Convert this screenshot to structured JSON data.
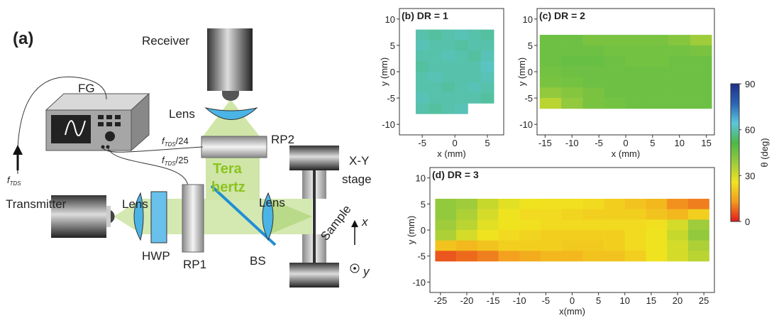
{
  "diagram": {
    "panel": "(a)",
    "receiver": "Receiver",
    "lens_top": "Lens",
    "fg": "FG",
    "rp2": "RP2",
    "stage": [
      "X-Y",
      "stage"
    ],
    "f24": {
      "f": "f",
      "sub": "TDS",
      "rest": "/24"
    },
    "f25": {
      "f": "f",
      "sub": "TDS",
      "rest": "/25"
    },
    "fin": {
      "f": "f",
      "sub": "TDS"
    },
    "terahertz": [
      "Tera",
      "hertz"
    ],
    "transmitter": "Transmitter",
    "lens_left": "Lens",
    "lens_right": "Lens",
    "sample": "Sample",
    "axis_x": "x",
    "axis_y": "y",
    "hwp": "HWP",
    "rp1": "RP1",
    "bs": "BS"
  },
  "chart_data": [
    {
      "type": "heatmap",
      "title": "(b) DR = 1",
      "xlabel": "x (mm)",
      "ylabel": "y (mm)",
      "xlim": [
        -8.5,
        7.5
      ],
      "ylim": [
        -12,
        12
      ],
      "xticks": [
        -5,
        0,
        5
      ],
      "yticks": [
        -10,
        -5,
        0,
        5,
        10
      ],
      "x": [
        -5,
        -3,
        -1,
        1,
        3,
        5
      ],
      "y": [
        7,
        5,
        3,
        1,
        -1,
        -3,
        -5,
        -7
      ],
      "z": [
        [
          60,
          59,
          60,
          61,
          60,
          59
        ],
        [
          61,
          60,
          60,
          59,
          60,
          60
        ],
        [
          60,
          60,
          61,
          60,
          59,
          61
        ],
        [
          59,
          60,
          60,
          60,
          60,
          62
        ],
        [
          60,
          61,
          60,
          60,
          60,
          61
        ],
        [
          60,
          60,
          59,
          60,
          61,
          60
        ],
        [
          61,
          60,
          60,
          60,
          60,
          59
        ],
        [
          60,
          59,
          60,
          61,
          null,
          null
        ]
      ]
    },
    {
      "type": "heatmap",
      "title": "(c) DR = 2",
      "xlabel": "x (mm)",
      "ylabel": "y (mm)",
      "xlim": [
        -16.5,
        16.5
      ],
      "ylim": [
        -12,
        12
      ],
      "xticks": [
        -15,
        -10,
        -5,
        0,
        5,
        10,
        15
      ],
      "yticks": [
        -10,
        -5,
        0,
        5,
        10
      ],
      "x": [
        -14,
        -10,
        -6,
        -2,
        2,
        6,
        10,
        14
      ],
      "y": [
        6,
        4,
        2,
        0,
        -2,
        -4,
        -6
      ],
      "z": [
        [
          46,
          46,
          44,
          44,
          44,
          44,
          42,
          38
        ],
        [
          46,
          46,
          46,
          45,
          45,
          45,
          45,
          44
        ],
        [
          46,
          47,
          47,
          46,
          45,
          45,
          46,
          46
        ],
        [
          45,
          46,
          46,
          46,
          46,
          46,
          46,
          46
        ],
        [
          44,
          45,
          46,
          46,
          46,
          46,
          46,
          46
        ],
        [
          40,
          42,
          44,
          46,
          46,
          46,
          46,
          46
        ],
        [
          34,
          40,
          44,
          45,
          46,
          46,
          46,
          46
        ]
      ]
    },
    {
      "type": "heatmap",
      "title": "(d) DR = 3",
      "xlabel": "x(mm)",
      "ylabel": "y (mm)",
      "xlim": [
        -27,
        27
      ],
      "ylim": [
        -12,
        12
      ],
      "xticks": [
        -25,
        -20,
        -15,
        -10,
        -5,
        0,
        5,
        10,
        15,
        20,
        25
      ],
      "yticks": [
        -10,
        -5,
        0,
        5,
        10
      ],
      "x": [
        -24,
        -20,
        -16,
        -12,
        -8,
        -4,
        0,
        4,
        8,
        12,
        16,
        20,
        24
      ],
      "y": [
        5,
        3,
        1,
        -1,
        -3,
        -5
      ],
      "z": [
        [
          40,
          38,
          32,
          28,
          26,
          25,
          25,
          24,
          22,
          20,
          18,
          12,
          10
        ],
        [
          40,
          36,
          30,
          26,
          24,
          24,
          23,
          22,
          22,
          22,
          20,
          18,
          22
        ],
        [
          38,
          34,
          28,
          26,
          25,
          24,
          24,
          24,
          24,
          24,
          25,
          30,
          38
        ],
        [
          36,
          30,
          26,
          24,
          23,
          22,
          22,
          22,
          22,
          24,
          26,
          32,
          40
        ],
        [
          20,
          18,
          20,
          22,
          22,
          22,
          21,
          21,
          22,
          24,
          26,
          30,
          36
        ],
        [
          6,
          8,
          10,
          14,
          16,
          18,
          18,
          20,
          20,
          22,
          26,
          30,
          34
        ]
      ]
    }
  ],
  "colorbar": {
    "label": "θ (deg)",
    "clim": [
      0,
      90
    ],
    "ticks": [
      0,
      30,
      60,
      90
    ],
    "colors": [
      "#e31a1c",
      "#f39a1e",
      "#f1e41f",
      "#9bcb3c",
      "#4cb848",
      "#5cc6dc",
      "#2a64b4",
      "#1f2f8a"
    ]
  }
}
